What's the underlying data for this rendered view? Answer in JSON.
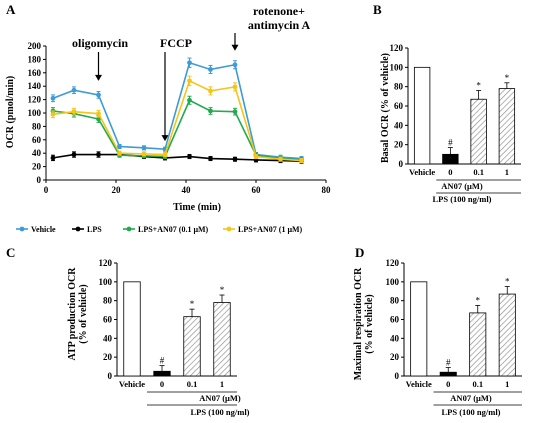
{
  "chart_data": [
    {
      "id": "A",
      "type": "line",
      "panel_label": "A",
      "xlabel": "Time (min)",
      "ylabel": "OCR (pmol/min)",
      "xlim": [
        0,
        80
      ],
      "ylim": [
        0,
        200
      ],
      "x_ticks": [
        "0",
        "20",
        "40",
        "60",
        "80"
      ],
      "y_ticks": [
        "0",
        "20",
        "40",
        "60",
        "80",
        "100",
        "120",
        "140",
        "160",
        "180",
        "200"
      ],
      "x": [
        2,
        8,
        15,
        21,
        28,
        34,
        41,
        47,
        54,
        60,
        67,
        73
      ],
      "series": [
        {
          "name": "Vehicle",
          "color": "#3d9bd6",
          "marker": "circle",
          "values": [
            122,
            134,
            127,
            50,
            48,
            46,
            175,
            165,
            172,
            38,
            34,
            32
          ],
          "errors": [
            5,
            5,
            5,
            3,
            3,
            3,
            7,
            6,
            6,
            3,
            3,
            3
          ]
        },
        {
          "name": "LPS",
          "color": "#000000",
          "marker": "circle",
          "values": [
            33,
            38,
            38,
            38,
            35,
            33,
            35,
            32,
            31,
            30,
            29,
            28
          ],
          "errors": [
            4,
            4,
            4,
            3,
            3,
            3,
            3,
            3,
            3,
            3,
            3,
            3
          ]
        },
        {
          "name": "LPS+AN07 (0.1 μM)",
          "color": "#22aa4d",
          "marker": "circle",
          "values": [
            103,
            99,
            91,
            37,
            36,
            35,
            119,
            103,
            102,
            37,
            32,
            30
          ],
          "errors": [
            5,
            5,
            5,
            3,
            3,
            3,
            6,
            5,
            5,
            3,
            3,
            3
          ]
        },
        {
          "name": "LPS+AN07 (1 μM)",
          "color": "#f5c518",
          "marker": "circle",
          "values": [
            98,
            102,
            99,
            40,
            39,
            38,
            148,
            133,
            139,
            35,
            31,
            29
          ],
          "errors": [
            5,
            5,
            5,
            3,
            3,
            3,
            7,
            6,
            6,
            3,
            3,
            3
          ]
        }
      ],
      "annotations": [
        {
          "text": "oligomycin",
          "x": 15
        },
        {
          "text": "FCCP",
          "x": 34
        },
        {
          "text": "rotenone+",
          "x": 54
        },
        {
          "text": "antimycin A",
          "x": 54
        }
      ],
      "legend": {
        "position": "bottom",
        "items": [
          "Vehicle",
          "LPS",
          "LPS+AN07 (0.1 μM)",
          "LPS+AN07 (1 μM)"
        ]
      }
    },
    {
      "id": "B",
      "type": "bar",
      "panel_label": "B",
      "ylabel": "Basal OCR (% of vehicle)",
      "ylim": [
        0,
        120
      ],
      "y_ticks": [
        "0",
        "20",
        "40",
        "60",
        "80",
        "100",
        "120"
      ],
      "categories": [
        "Vehicle",
        "0",
        "0.1",
        "1"
      ],
      "values": [
        100,
        10,
        67,
        78
      ],
      "errors": [
        0,
        7,
        9,
        6
      ],
      "significance": [
        "",
        "#",
        "*",
        "*"
      ],
      "group_label_1": "AN07 (μM)",
      "group_label_2": "LPS (100 ng/ml)"
    },
    {
      "id": "C",
      "type": "bar",
      "panel_label": "C",
      "ylabel": "ATP production OCR",
      "ylabel2": "(% of vehicle)",
      "ylim": [
        0,
        120
      ],
      "y_ticks": [
        "0",
        "20",
        "40",
        "60",
        "80",
        "100",
        "120"
      ],
      "categories": [
        "Vehicle",
        "0",
        "0.1",
        "1"
      ],
      "values": [
        100,
        5,
        63,
        78
      ],
      "errors": [
        0,
        6,
        8,
        8
      ],
      "significance": [
        "",
        "#",
        "*",
        "*"
      ],
      "group_label_1": "AN07 (μM)",
      "group_label_2": "LPS (100 ng/ml)"
    },
    {
      "id": "D",
      "type": "bar",
      "panel_label": "D",
      "ylabel": "Maximal respiration OCR",
      "ylabel2": "(% of vehicle)",
      "ylim": [
        0,
        120
      ],
      "y_ticks": [
        "0",
        "20",
        "40",
        "60",
        "80",
        "100",
        "120"
      ],
      "categories": [
        "Vehicle",
        "0",
        "0.1",
        "1"
      ],
      "values": [
        100,
        4,
        67,
        87
      ],
      "errors": [
        0,
        5,
        8,
        8
      ],
      "significance": [
        "",
        "#",
        "*",
        "*"
      ],
      "group_label_1": "AN07 (μM)",
      "group_label_2": "LPS (100 ng/ml)"
    }
  ]
}
